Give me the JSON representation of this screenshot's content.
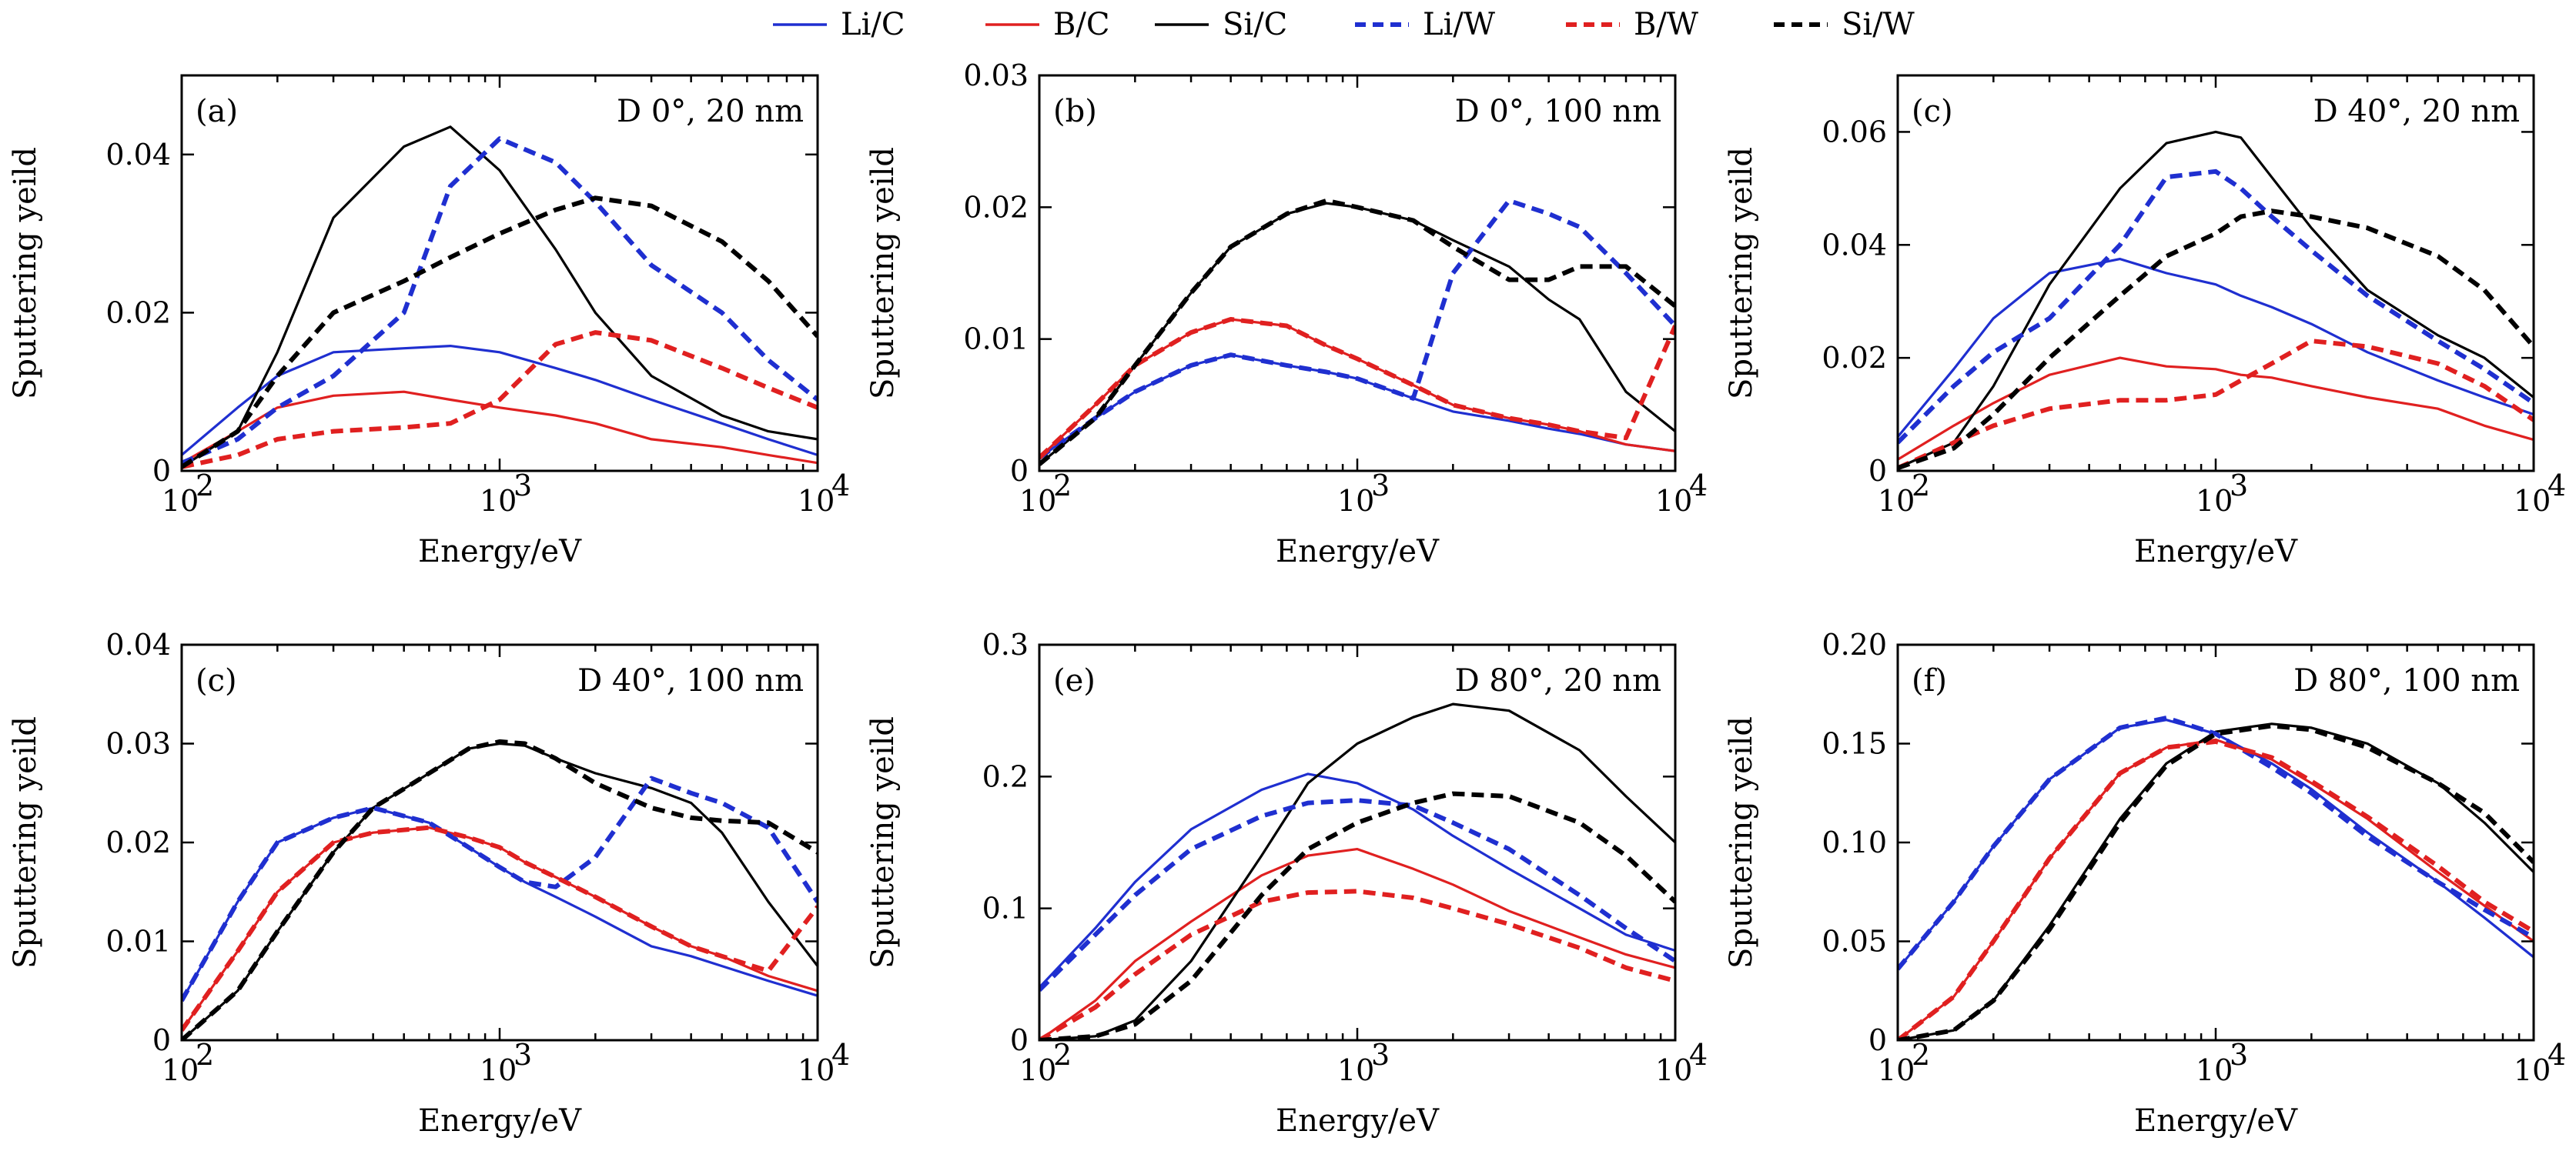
{
  "legend": [
    {
      "label": "Li/C",
      "color": "#1f2fd0",
      "dash": false
    },
    {
      "label": "B/C",
      "color": "#e02020",
      "dash": false
    },
    {
      "label": "Si/C",
      "color": "#000000",
      "dash": false
    },
    {
      "label": "Li/W",
      "color": "#1f2fd0",
      "dash": true
    },
    {
      "label": "B/W",
      "color": "#e02020",
      "dash": true
    },
    {
      "label": "Si/W",
      "color": "#000000",
      "dash": true
    }
  ],
  "chart_data": [
    {
      "type": "line",
      "tag": "(a)",
      "condition": "D 0°, 20 nm",
      "xlabel": "Energy/eV",
      "ylabel": "Sputtering yeild",
      "xscale": "log",
      "xlim": [
        100,
        10000
      ],
      "ylim": [
        0,
        0.05
      ],
      "yticks": [
        0,
        0.02,
        0.04
      ],
      "ytick_labels": [
        "0",
        "0.02",
        "0.04"
      ],
      "x": [
        100,
        150,
        200,
        300,
        500,
        700,
        1000,
        1500,
        2000,
        3000,
        5000,
        7000,
        10000
      ],
      "series": [
        {
          "name": "Li/C",
          "values": [
            0.002,
            0.008,
            0.012,
            0.015,
            0.0155,
            0.0158,
            0.015,
            0.013,
            0.0115,
            0.009,
            0.006,
            0.004,
            0.002
          ]
        },
        {
          "name": "B/C",
          "values": [
            0.001,
            0.005,
            0.008,
            0.0095,
            0.01,
            0.009,
            0.008,
            0.007,
            0.006,
            0.004,
            0.003,
            0.002,
            0.001
          ]
        },
        {
          "name": "Si/C",
          "values": [
            0.0005,
            0.005,
            0.015,
            0.032,
            0.041,
            0.0435,
            0.038,
            0.028,
            0.02,
            0.012,
            0.007,
            0.005,
            0.004
          ]
        },
        {
          "name": "Li/W",
          "values": [
            0.001,
            0.004,
            0.008,
            0.012,
            0.02,
            0.036,
            0.042,
            0.039,
            0.034,
            0.026,
            0.02,
            0.014,
            0.009
          ]
        },
        {
          "name": "B/W",
          "values": [
            0.0005,
            0.002,
            0.004,
            0.005,
            0.0055,
            0.006,
            0.009,
            0.016,
            0.0175,
            0.0165,
            0.013,
            0.0105,
            0.008
          ]
        },
        {
          "name": "Si/W",
          "values": [
            0.0005,
            0.005,
            0.012,
            0.02,
            0.024,
            0.027,
            0.03,
            0.033,
            0.0345,
            0.0335,
            0.029,
            0.024,
            0.017
          ]
        }
      ]
    },
    {
      "type": "line",
      "tag": "(b)",
      "condition": "D 0°, 100 nm",
      "xlabel": "Energy/eV",
      "ylabel": "Sputtering yeild",
      "xscale": "log",
      "xlim": [
        100,
        10000
      ],
      "ylim": [
        0,
        0.03
      ],
      "yticks": [
        0,
        0.01,
        0.02,
        0.03
      ],
      "ytick_labels": [
        "0",
        "0.01",
        "0.02",
        "0.03"
      ],
      "x": [
        100,
        150,
        200,
        300,
        400,
        600,
        800,
        1000,
        1500,
        2000,
        3000,
        4000,
        5000,
        7000,
        10000
      ],
      "series": [
        {
          "name": "Li/C",
          "values": [
            0.001,
            0.004,
            0.006,
            0.008,
            0.0088,
            0.008,
            0.0075,
            0.007,
            0.0055,
            0.0045,
            0.0038,
            0.0032,
            0.0028,
            0.002,
            0.0015
          ]
        },
        {
          "name": "B/C",
          "values": [
            0.001,
            0.005,
            0.008,
            0.0105,
            0.0115,
            0.011,
            0.0095,
            0.0085,
            0.0065,
            0.005,
            0.004,
            0.0035,
            0.003,
            0.002,
            0.0015
          ]
        },
        {
          "name": "Si/C",
          "values": [
            0.0005,
            0.004,
            0.008,
            0.0135,
            0.017,
            0.0195,
            0.0203,
            0.02,
            0.019,
            0.0175,
            0.0155,
            0.013,
            0.0115,
            0.006,
            0.003
          ]
        },
        {
          "name": "Li/W",
          "values": [
            0.001,
            0.004,
            0.006,
            0.008,
            0.0088,
            0.008,
            0.0075,
            0.007,
            0.0055,
            0.015,
            0.0205,
            0.0195,
            0.0185,
            0.015,
            0.011
          ]
        },
        {
          "name": "B/W",
          "values": [
            0.001,
            0.005,
            0.008,
            0.0105,
            0.0115,
            0.011,
            0.0095,
            0.0085,
            0.0065,
            0.005,
            0.004,
            0.0035,
            0.003,
            0.0025,
            0.011
          ]
        },
        {
          "name": "Si/W",
          "values": [
            0.0005,
            0.004,
            0.008,
            0.0135,
            0.017,
            0.0195,
            0.0205,
            0.02,
            0.019,
            0.017,
            0.0145,
            0.0145,
            0.0155,
            0.0155,
            0.0125
          ]
        }
      ]
    },
    {
      "type": "line",
      "tag": "(c)",
      "condition": "D 40°, 20 nm",
      "xlabel": "Energy/eV",
      "ylabel": "Sputtering yeild",
      "xscale": "log",
      "xlim": [
        100,
        10000
      ],
      "ylim": [
        0,
        0.07
      ],
      "yticks": [
        0,
        0.02,
        0.04,
        0.06
      ],
      "ytick_labels": [
        "0",
        "0.02",
        "0.04",
        "0.06"
      ],
      "x": [
        100,
        150,
        200,
        300,
        500,
        700,
        1000,
        1200,
        1500,
        2000,
        3000,
        5000,
        7000,
        10000
      ],
      "series": [
        {
          "name": "Li/C",
          "values": [
            0.006,
            0.018,
            0.027,
            0.035,
            0.0375,
            0.035,
            0.033,
            0.031,
            0.029,
            0.026,
            0.021,
            0.016,
            0.013,
            0.01
          ]
        },
        {
          "name": "B/C",
          "values": [
            0.002,
            0.008,
            0.012,
            0.017,
            0.02,
            0.0185,
            0.018,
            0.017,
            0.0165,
            0.015,
            0.013,
            0.011,
            0.008,
            0.0055
          ]
        },
        {
          "name": "Si/C",
          "values": [
            0.0005,
            0.005,
            0.015,
            0.033,
            0.05,
            0.058,
            0.06,
            0.059,
            0.052,
            0.043,
            0.032,
            0.024,
            0.02,
            0.013
          ]
        },
        {
          "name": "Li/W",
          "values": [
            0.005,
            0.015,
            0.021,
            0.027,
            0.04,
            0.052,
            0.053,
            0.05,
            0.045,
            0.039,
            0.031,
            0.023,
            0.018,
            0.012
          ]
        },
        {
          "name": "B/W",
          "values": [
            0.0005,
            0.005,
            0.008,
            0.011,
            0.0125,
            0.0125,
            0.0135,
            0.016,
            0.019,
            0.023,
            0.022,
            0.019,
            0.015,
            0.009
          ]
        },
        {
          "name": "Si/W",
          "values": [
            0.0005,
            0.004,
            0.01,
            0.02,
            0.031,
            0.038,
            0.042,
            0.045,
            0.046,
            0.045,
            0.043,
            0.038,
            0.032,
            0.022
          ]
        }
      ]
    },
    {
      "type": "line",
      "tag": "(c)",
      "condition": "D 40°, 100 nm",
      "xlabel": "Energy/eV",
      "ylabel": "Sputtering yeild",
      "xscale": "log",
      "xlim": [
        100,
        10000
      ],
      "ylim": [
        0,
        0.04
      ],
      "yticks": [
        0,
        0.01,
        0.02,
        0.03,
        0.04
      ],
      "ytick_labels": [
        "0",
        "0.01",
        "0.02",
        "0.03",
        "0.04"
      ],
      "x": [
        100,
        150,
        200,
        300,
        400,
        600,
        800,
        1000,
        1200,
        1500,
        2000,
        3000,
        4000,
        5000,
        7000,
        10000
      ],
      "series": [
        {
          "name": "Li/C",
          "values": [
            0.004,
            0.014,
            0.02,
            0.0225,
            0.0235,
            0.022,
            0.0195,
            0.0175,
            0.016,
            0.0145,
            0.0125,
            0.0095,
            0.0085,
            0.0075,
            0.006,
            0.0045
          ]
        },
        {
          "name": "B/C",
          "values": [
            0.001,
            0.009,
            0.015,
            0.02,
            0.021,
            0.0215,
            0.0205,
            0.0195,
            0.018,
            0.0165,
            0.0145,
            0.0115,
            0.0095,
            0.0085,
            0.0065,
            0.005
          ]
        },
        {
          "name": "Si/C",
          "values": [
            0,
            0.005,
            0.011,
            0.019,
            0.0235,
            0.027,
            0.0295,
            0.03,
            0.0298,
            0.0285,
            0.027,
            0.0255,
            0.024,
            0.021,
            0.014,
            0.0075
          ]
        },
        {
          "name": "Li/W",
          "values": [
            0.004,
            0.014,
            0.02,
            0.0225,
            0.0235,
            0.022,
            0.0195,
            0.0175,
            0.016,
            0.0155,
            0.0185,
            0.0265,
            0.025,
            0.024,
            0.0215,
            0.014
          ]
        },
        {
          "name": "B/W",
          "values": [
            0.001,
            0.009,
            0.015,
            0.02,
            0.021,
            0.0215,
            0.0205,
            0.0195,
            0.018,
            0.0165,
            0.0145,
            0.0115,
            0.0095,
            0.0085,
            0.007,
            0.0135
          ]
        },
        {
          "name": "Si/W",
          "values": [
            0,
            0.005,
            0.011,
            0.019,
            0.0235,
            0.027,
            0.0295,
            0.0302,
            0.03,
            0.0285,
            0.026,
            0.0235,
            0.0225,
            0.0222,
            0.022,
            0.019
          ]
        }
      ]
    },
    {
      "type": "line",
      "tag": "(e)",
      "condition": "D 80°, 20 nm",
      "xlabel": "Energy/eV",
      "ylabel": "Sputtering yeild",
      "xscale": "log",
      "xlim": [
        100,
        10000
      ],
      "ylim": [
        0,
        0.3
      ],
      "yticks": [
        0,
        0.1,
        0.2,
        0.3
      ],
      "ytick_labels": [
        "0",
        "0.1",
        "0.2",
        "0.3"
      ],
      "x": [
        100,
        150,
        200,
        300,
        500,
        700,
        1000,
        1500,
        2000,
        3000,
        5000,
        7000,
        10000
      ],
      "series": [
        {
          "name": "Li/C",
          "values": [
            0.04,
            0.085,
            0.12,
            0.16,
            0.19,
            0.202,
            0.195,
            0.175,
            0.155,
            0.13,
            0.1,
            0.08,
            0.068
          ]
        },
        {
          "name": "B/C",
          "values": [
            0,
            0.03,
            0.06,
            0.09,
            0.125,
            0.14,
            0.145,
            0.13,
            0.118,
            0.098,
            0.078,
            0.065,
            0.055
          ]
        },
        {
          "name": "Si/C",
          "values": [
            0,
            0.003,
            0.015,
            0.06,
            0.14,
            0.195,
            0.225,
            0.245,
            0.255,
            0.25,
            0.22,
            0.185,
            0.15
          ]
        },
        {
          "name": "Li/W",
          "values": [
            0.038,
            0.08,
            0.11,
            0.145,
            0.17,
            0.18,
            0.182,
            0.178,
            0.165,
            0.145,
            0.11,
            0.085,
            0.06
          ]
        },
        {
          "name": "B/W",
          "values": [
            0,
            0.025,
            0.05,
            0.08,
            0.105,
            0.112,
            0.113,
            0.108,
            0.1,
            0.088,
            0.07,
            0.055,
            0.045
          ]
        },
        {
          "name": "Si/W",
          "values": [
            0,
            0.003,
            0.012,
            0.045,
            0.11,
            0.145,
            0.165,
            0.18,
            0.187,
            0.185,
            0.165,
            0.14,
            0.105
          ]
        }
      ]
    },
    {
      "type": "line",
      "tag": "(f)",
      "condition": "D 80°, 100 nm",
      "xlabel": "Energy/eV",
      "ylabel": "Sputtering yeild",
      "xscale": "log",
      "xlim": [
        100,
        10000
      ],
      "ylim": [
        0,
        0.2
      ],
      "yticks": [
        0,
        0.05,
        0.1,
        0.15,
        0.2
      ],
      "ytick_labels": [
        "0",
        "0.05",
        "0.10",
        "0.15",
        "0.20"
      ],
      "x": [
        100,
        150,
        200,
        300,
        500,
        700,
        1000,
        1500,
        2000,
        3000,
        5000,
        7000,
        10000
      ],
      "series": [
        {
          "name": "Li/C",
          "values": [
            0.036,
            0.07,
            0.098,
            0.132,
            0.158,
            0.162,
            0.155,
            0.14,
            0.127,
            0.105,
            0.08,
            0.062,
            0.042
          ]
        },
        {
          "name": "B/C",
          "values": [
            0,
            0.022,
            0.05,
            0.092,
            0.135,
            0.148,
            0.152,
            0.142,
            0.13,
            0.112,
            0.085,
            0.068,
            0.05
          ]
        },
        {
          "name": "Si/C",
          "values": [
            0,
            0.005,
            0.02,
            0.058,
            0.112,
            0.14,
            0.156,
            0.16,
            0.158,
            0.15,
            0.13,
            0.11,
            0.085
          ]
        },
        {
          "name": "Li/W",
          "values": [
            0.036,
            0.07,
            0.098,
            0.132,
            0.158,
            0.163,
            0.155,
            0.138,
            0.125,
            0.103,
            0.08,
            0.066,
            0.052
          ]
        },
        {
          "name": "B/W",
          "values": [
            0,
            0.022,
            0.05,
            0.092,
            0.135,
            0.148,
            0.151,
            0.143,
            0.131,
            0.113,
            0.088,
            0.07,
            0.055
          ]
        },
        {
          "name": "Si/W",
          "values": [
            0,
            0.005,
            0.02,
            0.056,
            0.11,
            0.139,
            0.155,
            0.159,
            0.157,
            0.148,
            0.13,
            0.115,
            0.09
          ]
        }
      ]
    }
  ]
}
